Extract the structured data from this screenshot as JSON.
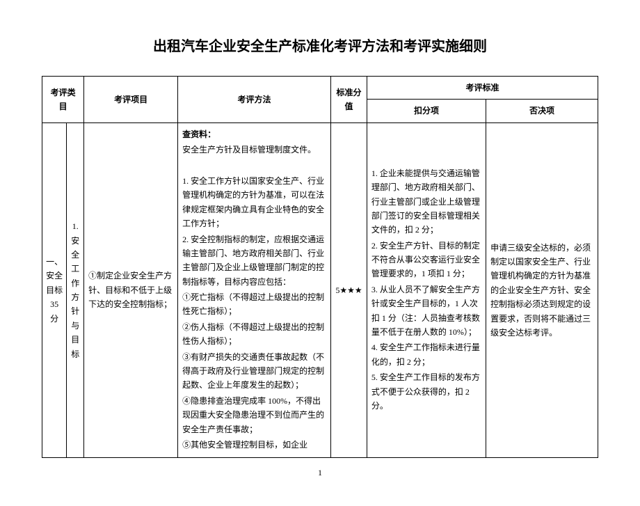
{
  "title": "出租汽车企业安全生产标准化考评方法和考评实施细则",
  "header": {
    "category": "考评类目",
    "item": "考评项目",
    "method": "考评方法",
    "score": "标准分值",
    "criteria": "考评标准",
    "deduction": "扣分项",
    "veto": "否决项"
  },
  "row": {
    "category": "一、安全目标 35 分",
    "subcategory": "1. 安全工作方针与目标",
    "item": "①制定企业安全生产方针、目标和不低于上级下达的安全控制指标；",
    "score": "5★★★",
    "method": {
      "lead": "查资料：",
      "l0": "安全生产方针及目标管理制度文件。",
      "l1": "1. 安全工作方针以国家安全生产、行业管理机构确定的方针为基准，可以在法律规定框架内确立具有企业特色的安全工作方针；",
      "l2": "2. 安全控制指标的制定，应根据交通运输主管部门、地方政府相关部门、行业主管部门及企业上级管理部门制定的控制指标等，目标内容应包括：",
      "l3": "①死亡指标（不得超过上级提出的控制性死亡指标）；",
      "l4": "②伤人指标（不得超过上级提出的控制性伤人指标）；",
      "l5": "③有财产损失的交通责任事故起数（不得高于政府及行业管理部门规定的控制起数、企业上年度发生的起数）；",
      "l6": "④隐患排查治理完成率 100%，不得出现因重大安全隐患治理不到位而产生的安全生产责任事故；",
      "l7": "⑤其他安全管理控制目标，如企业"
    },
    "deduction": {
      "d1": "1. 企业未能提供与交通运输管理部门、地方政府相关部门、行业主管部门或企业上级管理部门签订的安全目标管理相关文件的，扣 2 分；",
      "d2": "2. 安全生产方针、目标的制定不符合从事公交客运行业安全管理要求的，1 项扣 1 分；",
      "d3": "3. 从业人员不了解安全生产方针或安全生产目标的，1 人次扣 1 分（注：人员抽查考核数量不低于在册人数的 10%）；",
      "d4": "4. 安全生产工作指标未进行量化的，扣 2 分；",
      "d5": "5. 安全生产工作目标的发布方式不便于公众获得的，扣 2 分。"
    },
    "veto": "申请三级安全达标的，必须制定以国家安全生产、行业管理机构确定的方针为基准的企业安全生产方针、安全控制指标必须达到规定的设置要求，否则将不能通过三级安全达标考评。"
  },
  "pageNumber": "1"
}
